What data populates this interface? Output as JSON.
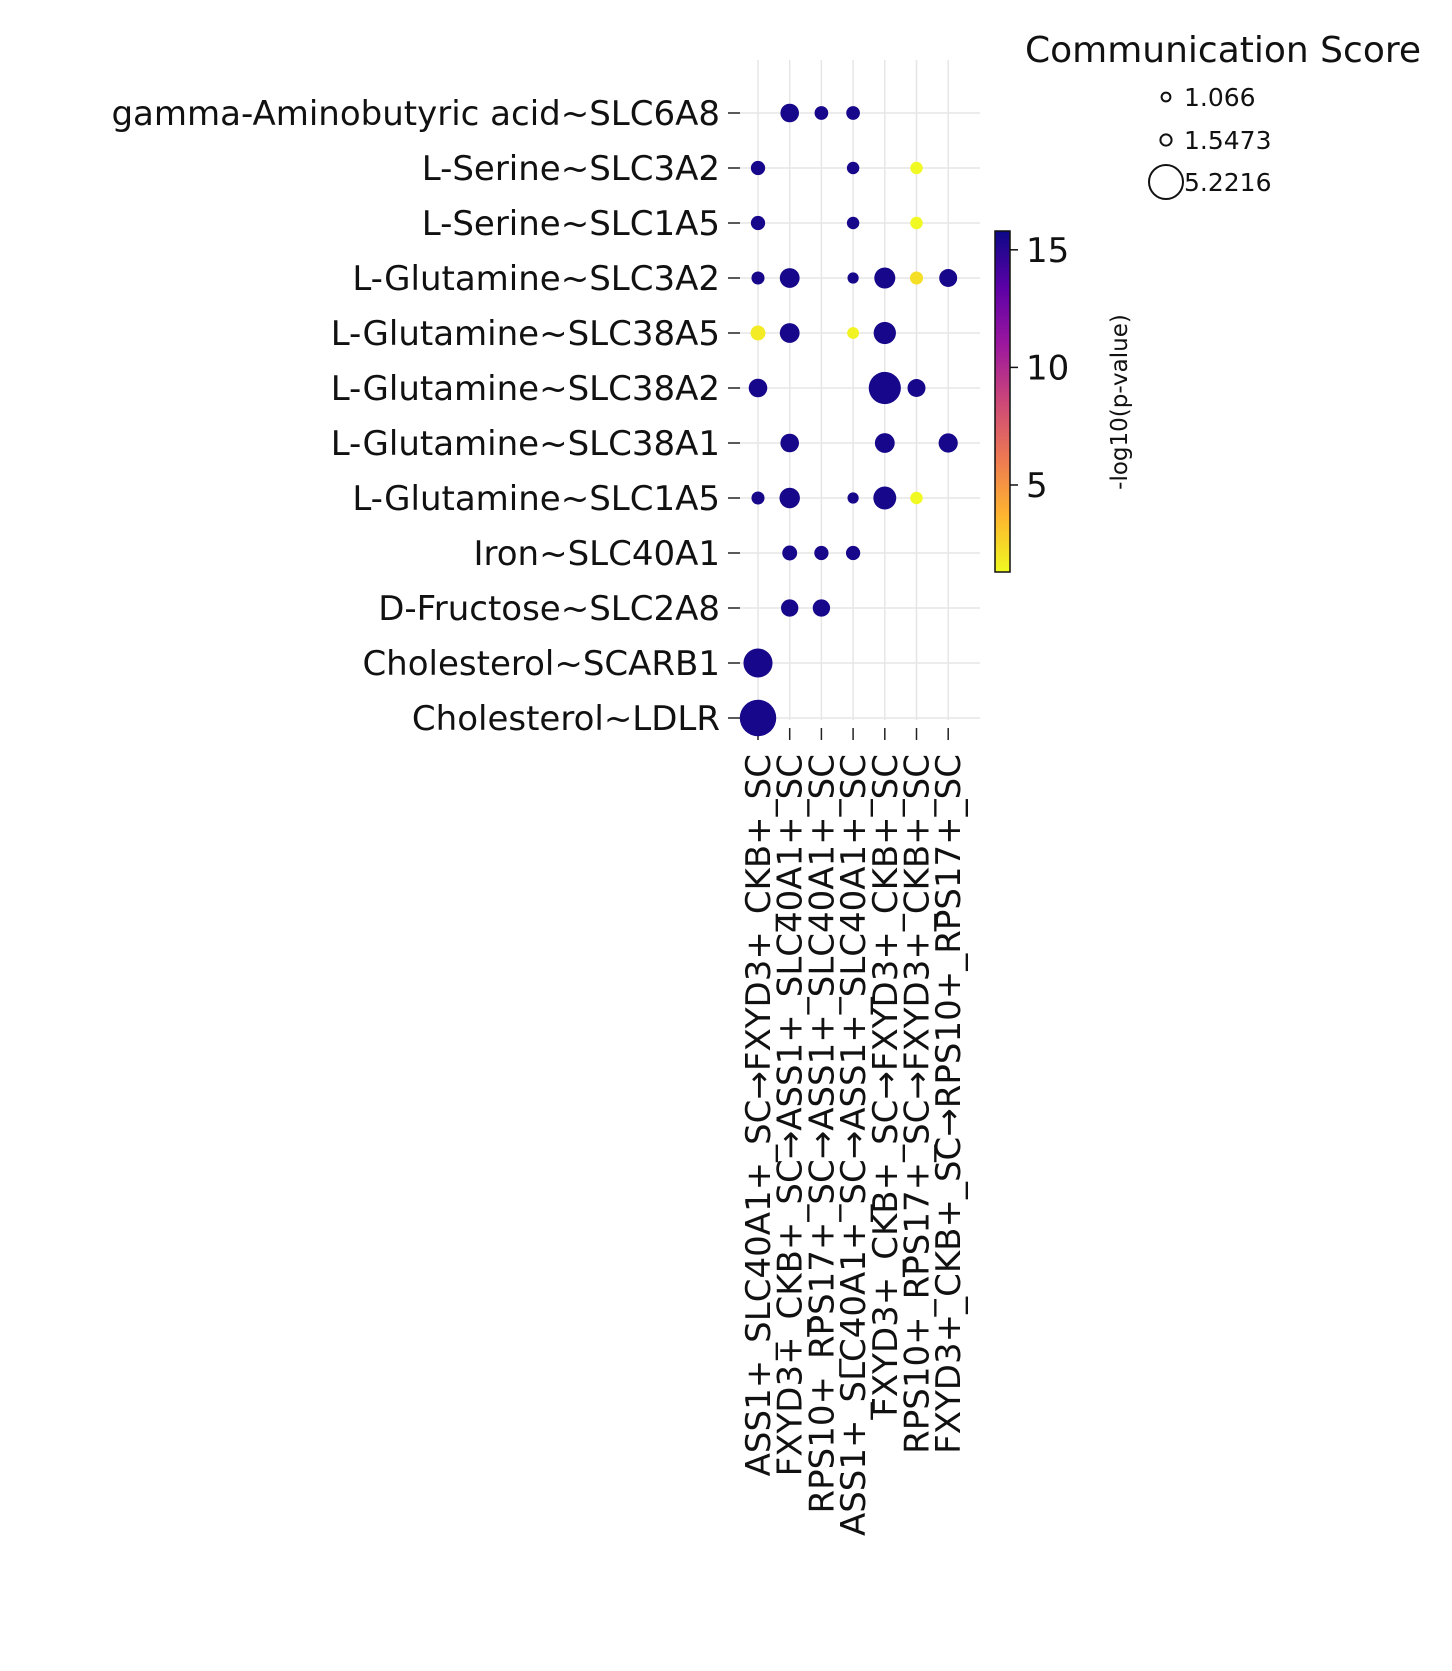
{
  "chart_data": {
    "type": "scatter",
    "kind": "dot-plot",
    "y_categories": [
      "gamma-Aminobutyric acid~SLC6A8",
      "L-Serine~SLC3A2",
      "L-Serine~SLC1A5",
      "L-Glutamine~SLC3A2",
      "L-Glutamine~SLC38A5",
      "L-Glutamine~SLC38A2",
      "L-Glutamine~SLC38A1",
      "L-Glutamine~SLC1A5",
      "Iron~SLC40A1",
      "D-Fructose~SLC2A8",
      "Cholesterol~SCARB1",
      "Cholesterol~LDLR"
    ],
    "x_categories": [
      "ASS1+_SLC40A1+_SC→FXYD3+_CKB+_SC",
      "FXYD3+_CKB+_SC→ASS1+_SLC40A1+_SC",
      "RPS10+_RPS17+_SC→ASS1+_SLC40A1+_SC",
      "ASS1+_SLC40A1+_SC→ASS1+_SLC40A1+_SC",
      "FXYD3+_CKB+_SC→FXYD3+_CKB+_SC",
      "RPS10+_RPS17+_SC→FXYD3+_CKB+_SC",
      "FXYD3+_CKB+_SC→RPS10+_RPS17+_SC"
    ],
    "points": [
      {
        "y": "gamma-Aminobutyric acid~SLC6A8",
        "x": 1,
        "score": 2.3,
        "neglog10p": 15.5
      },
      {
        "y": "gamma-Aminobutyric acid~SLC6A8",
        "x": 2,
        "score": 1.5,
        "neglog10p": 15.5
      },
      {
        "y": "gamma-Aminobutyric acid~SLC6A8",
        "x": 3,
        "score": 1.5,
        "neglog10p": 15.5
      },
      {
        "y": "L-Serine~SLC3A2",
        "x": 0,
        "score": 1.6,
        "neglog10p": 15.5
      },
      {
        "y": "L-Serine~SLC3A2",
        "x": 3,
        "score": 1.3,
        "neglog10p": 15.5
      },
      {
        "y": "L-Serine~SLC3A2",
        "x": 5,
        "score": 1.3,
        "neglog10p": 1.3
      },
      {
        "y": "L-Serine~SLC1A5",
        "x": 0,
        "score": 1.6,
        "neglog10p": 15.5
      },
      {
        "y": "L-Serine~SLC1A5",
        "x": 3,
        "score": 1.3,
        "neglog10p": 15.5
      },
      {
        "y": "L-Serine~SLC1A5",
        "x": 5,
        "score": 1.3,
        "neglog10p": 1.3
      },
      {
        "y": "L-Glutamine~SLC3A2",
        "x": 0,
        "score": 1.4,
        "neglog10p": 15.5
      },
      {
        "y": "L-Glutamine~SLC3A2",
        "x": 1,
        "score": 2.5,
        "neglog10p": 15.5
      },
      {
        "y": "L-Glutamine~SLC3A2",
        "x": 3,
        "score": 1.1,
        "neglog10p": 15.5
      },
      {
        "y": "L-Glutamine~SLC3A2",
        "x": 4,
        "score": 2.7,
        "neglog10p": 15.5
      },
      {
        "y": "L-Glutamine~SLC3A2",
        "x": 5,
        "score": 1.4,
        "neglog10p": 2.2
      },
      {
        "y": "L-Glutamine~SLC3A2",
        "x": 6,
        "score": 2.2,
        "neglog10p": 15.5
      },
      {
        "y": "L-Glutamine~SLC38A5",
        "x": 0,
        "score": 1.7,
        "neglog10p": 1.8
      },
      {
        "y": "L-Glutamine~SLC38A5",
        "x": 1,
        "score": 2.5,
        "neglog10p": 15.5
      },
      {
        "y": "L-Glutamine~SLC38A5",
        "x": 3,
        "score": 1.2,
        "neglog10p": 1.5
      },
      {
        "y": "L-Glutamine~SLC38A5",
        "x": 4,
        "score": 2.9,
        "neglog10p": 15.5
      },
      {
        "y": "L-Glutamine~SLC38A2",
        "x": 0,
        "score": 2.3,
        "neglog10p": 15.5
      },
      {
        "y": "L-Glutamine~SLC38A2",
        "x": 4,
        "score": 4.5,
        "neglog10p": 15.5
      },
      {
        "y": "L-Glutamine~SLC38A2",
        "x": 5,
        "score": 2.2,
        "neglog10p": 15.5
      },
      {
        "y": "L-Glutamine~SLC38A1",
        "x": 1,
        "score": 2.3,
        "neglog10p": 15.5
      },
      {
        "y": "L-Glutamine~SLC38A1",
        "x": 4,
        "score": 2.5,
        "neglog10p": 15.5
      },
      {
        "y": "L-Glutamine~SLC38A1",
        "x": 6,
        "score": 2.4,
        "neglog10p": 15.5
      },
      {
        "y": "L-Glutamine~SLC1A5",
        "x": 0,
        "score": 1.4,
        "neglog10p": 15.5
      },
      {
        "y": "L-Glutamine~SLC1A5",
        "x": 1,
        "score": 2.6,
        "neglog10p": 15.5
      },
      {
        "y": "L-Glutamine~SLC1A5",
        "x": 3,
        "score": 1.1,
        "neglog10p": 15.5
      },
      {
        "y": "L-Glutamine~SLC1A5",
        "x": 4,
        "score": 3.0,
        "neglog10p": 15.5
      },
      {
        "y": "L-Glutamine~SLC1A5",
        "x": 5,
        "score": 1.3,
        "neglog10p": 1.3
      },
      {
        "y": "Iron~SLC40A1",
        "x": 1,
        "score": 1.7,
        "neglog10p": 15.5
      },
      {
        "y": "Iron~SLC40A1",
        "x": 2,
        "score": 1.6,
        "neglog10p": 15.5
      },
      {
        "y": "Iron~SLC40A1",
        "x": 3,
        "score": 1.6,
        "neglog10p": 15.5
      },
      {
        "y": "D-Fructose~SLC2A8",
        "x": 1,
        "score": 2.1,
        "neglog10p": 15.5
      },
      {
        "y": "D-Fructose~SLC2A8",
        "x": 2,
        "score": 2.1,
        "neglog10p": 15.5
      },
      {
        "y": "Cholesterol~SCARB1",
        "x": 0,
        "score": 4.0,
        "neglog10p": 15.5
      },
      {
        "y": "Cholesterol~LDLR",
        "x": 0,
        "score": 5.2,
        "neglog10p": 15.5
      }
    ],
    "size_legend": {
      "title": "Communication Score",
      "entries": [
        {
          "label": "1.066",
          "value": 1.066
        },
        {
          "label": "1.5473",
          "value": 1.5473
        },
        {
          "label": "5.2216",
          "value": 5.2216
        }
      ]
    },
    "colorbar": {
      "label": "-log10(p-value)",
      "colormap": "plasma",
      "range": [
        1.3,
        15.8
      ],
      "ticks": [
        {
          "label": "5",
          "value": 5
        },
        {
          "label": "10",
          "value": 10
        },
        {
          "label": "15",
          "value": 15
        }
      ],
      "colors": [
        "#f0f921",
        "#fdb42f",
        "#ed7953",
        "#cc4778",
        "#9c179e",
        "#5c01a6",
        "#0d0887"
      ]
    },
    "grid": true,
    "legend_position": "top-right"
  }
}
